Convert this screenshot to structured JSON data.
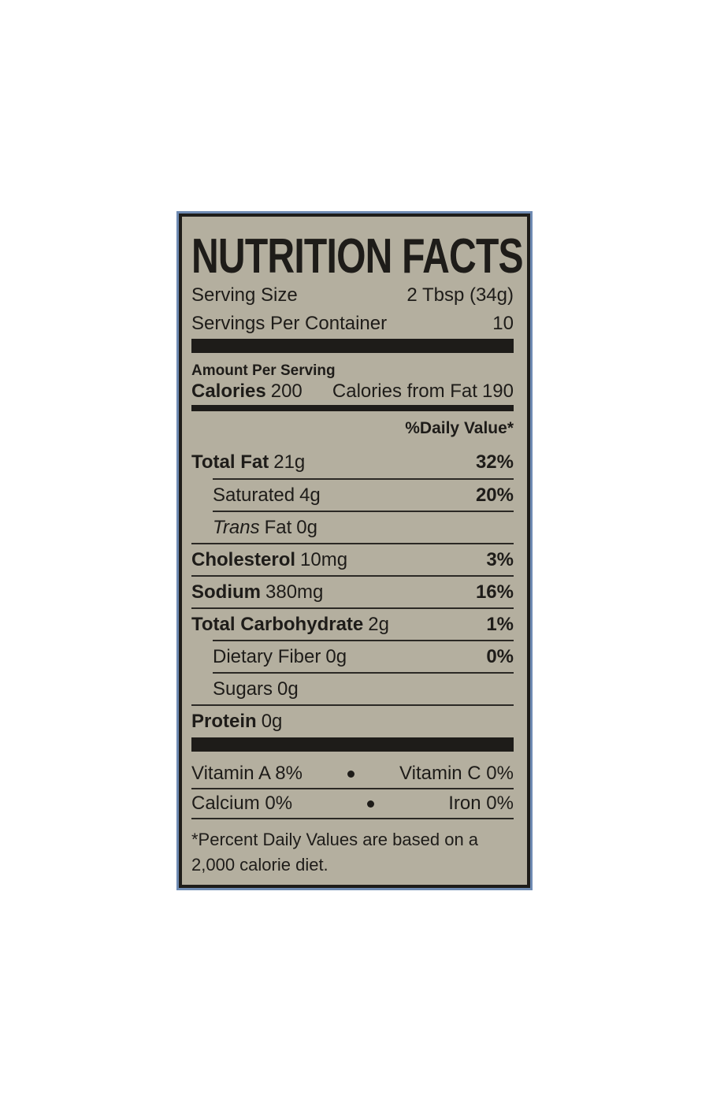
{
  "label": {
    "title": "NUTRITION FACTS",
    "serving_size": {
      "label": "Serving Size",
      "value": "2 Tbsp (34g)"
    },
    "servings_per_container": {
      "label": "Servings Per Container",
      "value": "10"
    },
    "amount_per_serving": "Amount Per Serving",
    "calories": {
      "label": "Calories",
      "value": "200"
    },
    "calories_from_fat": {
      "label": "Calories from Fat",
      "value": "190"
    },
    "daily_value_header": "%Daily Value*",
    "nutrients": [
      {
        "name": "Total Fat",
        "amount": "21g",
        "dv": "32%"
      },
      {
        "name": "Saturated",
        "amount": "4g",
        "dv": "20%"
      },
      {
        "name_italic": "Trans",
        "name": "Fat",
        "amount": "0g"
      },
      {
        "name": "Cholesterol",
        "amount": "10mg",
        "dv": "3%"
      },
      {
        "name": "Sodium",
        "amount": "380mg",
        "dv": "16%"
      },
      {
        "name": "Total Carbohydrate",
        "amount": "2g",
        "dv": "1%"
      },
      {
        "name": "Dietary Fiber",
        "amount": "0g",
        "dv": "0%"
      },
      {
        "name": "Sugars",
        "amount": "0g"
      },
      {
        "name": "Protein",
        "amount": "0g"
      }
    ],
    "vitamins": [
      [
        "Vitamin A 8%",
        "Vitamin C 0%"
      ],
      [
        "Calcium 0%",
        "Iron 0%"
      ]
    ],
    "footnote": "*Percent Daily Values are based on a 2,000 calorie diet."
  }
}
